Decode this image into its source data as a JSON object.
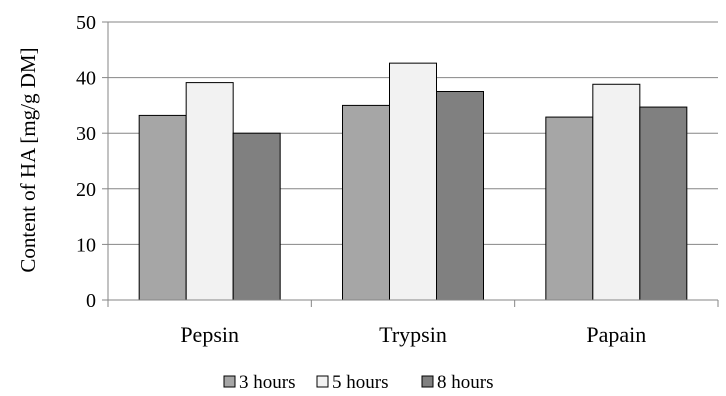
{
  "chart_data": {
    "type": "bar",
    "title": "",
    "xlabel": "",
    "ylabel": "Content of HA [mg/g DM]",
    "ylim": [
      0,
      50
    ],
    "yticks": [
      0,
      10,
      20,
      30,
      40,
      50
    ],
    "grid": true,
    "legend_position": "bottom",
    "categories": [
      "Pepsin",
      "Trypsin",
      "Papain"
    ],
    "series": [
      {
        "name": "3 hours",
        "color": "#a6a6a6",
        "values": [
          33.2,
          35.0,
          32.9
        ]
      },
      {
        "name": "5 hours",
        "color": "#f2f2f2",
        "values": [
          39.1,
          42.6,
          38.8
        ]
      },
      {
        "name": "8 hours",
        "color": "#808080",
        "values": [
          30.0,
          37.5,
          34.7
        ]
      }
    ]
  }
}
